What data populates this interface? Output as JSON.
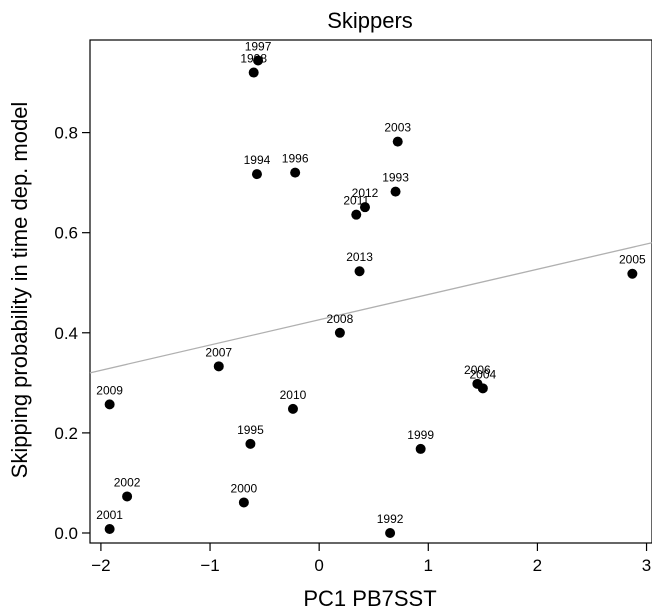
{
  "chart_data": {
    "type": "scatter",
    "title": "Skippers",
    "xlabel": "PC1 PB7SST",
    "ylabel": "Skipping probability in time dep. model",
    "xlim": [
      -2.1,
      3.05
    ],
    "ylim": [
      -0.02,
      0.985
    ],
    "xticks": [
      -2,
      -1,
      0,
      1,
      2,
      3
    ],
    "xtick_labels": [
      "−2",
      "−1",
      "0",
      "1",
      "2",
      "3"
    ],
    "yticks": [
      0.0,
      0.2,
      0.4,
      0.6,
      0.8
    ],
    "ytick_labels": [
      "0.0",
      "0.2",
      "0.4",
      "0.6",
      "0.8"
    ],
    "grid": false,
    "marker_color": "#000000",
    "line_color": "#b0b0b0",
    "points": [
      {
        "label": "1992",
        "x": 0.65,
        "y": 0.0
      },
      {
        "label": "1993",
        "x": 0.7,
        "y": 0.682
      },
      {
        "label": "1994",
        "x": -0.57,
        "y": 0.717
      },
      {
        "label": "1995",
        "x": -0.63,
        "y": 0.178
      },
      {
        "label": "1996",
        "x": -0.22,
        "y": 0.72
      },
      {
        "label": "1997",
        "x": -0.56,
        "y": 0.944
      },
      {
        "label": "1998",
        "x": -0.6,
        "y": 0.92
      },
      {
        "label": "1999",
        "x": 0.93,
        "y": 0.168
      },
      {
        "label": "2000",
        "x": -0.69,
        "y": 0.061
      },
      {
        "label": "2001",
        "x": -1.92,
        "y": 0.008
      },
      {
        "label": "2002",
        "x": -1.76,
        "y": 0.073
      },
      {
        "label": "2003",
        "x": 0.72,
        "y": 0.782
      },
      {
        "label": "2004",
        "x": 1.5,
        "y": 0.289
      },
      {
        "label": "2005",
        "x": 2.87,
        "y": 0.518
      },
      {
        "label": "2006",
        "x": 1.45,
        "y": 0.298
      },
      {
        "label": "2007",
        "x": -0.92,
        "y": 0.333
      },
      {
        "label": "2008",
        "x": 0.19,
        "y": 0.4
      },
      {
        "label": "2009",
        "x": -1.92,
        "y": 0.257
      },
      {
        "label": "2010",
        "x": -0.24,
        "y": 0.248
      },
      {
        "label": "2011",
        "x": 0.34,
        "y": 0.636
      },
      {
        "label": "2012",
        "x": 0.42,
        "y": 0.651
      },
      {
        "label": "2013",
        "x": 0.37,
        "y": 0.523
      }
    ],
    "trend_line": {
      "x": [
        -2.1,
        3.05
      ],
      "y": [
        0.32,
        0.58
      ]
    }
  }
}
